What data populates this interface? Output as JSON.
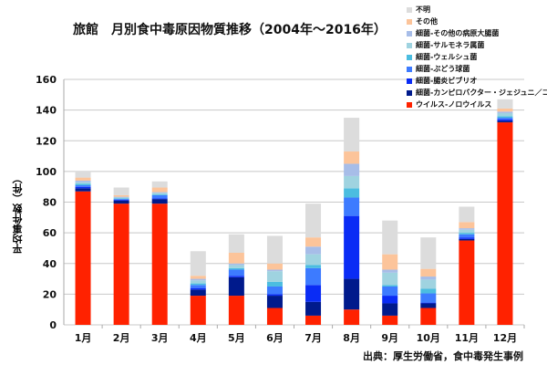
{
  "chart_data": {
    "type": "bar",
    "stacked": true,
    "title": "旅館　月別食中毒原因物質推移（2004年〜2016年）",
    "ylabel": "平均事件数（件）",
    "xlabel": "",
    "ylim": [
      0,
      160
    ],
    "yticks": [
      0,
      20,
      40,
      60,
      80,
      100,
      120,
      140,
      160
    ],
    "grid": true,
    "legend_position": "top-right",
    "categories": [
      "1月",
      "2月",
      "3月",
      "4月",
      "5月",
      "6月",
      "7月",
      "8月",
      "9月",
      "10月",
      "11月",
      "12月"
    ],
    "series": [
      {
        "name": "ウイルス-ノロウイルス",
        "color": "#ff2200",
        "values": [
          87,
          79,
          79,
          19,
          19,
          11,
          6,
          10,
          6,
          11,
          55,
          132
        ]
      },
      {
        "name": "細菌-カンピロバクター・ジェジュニ／コリ",
        "color": "#001a8c",
        "values": [
          2,
          2,
          3,
          4,
          12,
          8,
          9,
          20,
          8,
          3,
          1,
          1
        ]
      },
      {
        "name": "細菌-腸炎ビブリオ",
        "color": "#0a2cf5",
        "values": [
          1,
          0.5,
          0.5,
          1,
          1,
          1,
          11,
          41,
          5,
          0.5,
          1,
          1
        ]
      },
      {
        "name": "細菌-ぶどう球菌",
        "color": "#3d7bff",
        "values": [
          1,
          0.5,
          2,
          2,
          4,
          5,
          11,
          12,
          6,
          6,
          2,
          1
        ]
      },
      {
        "name": "細菌-ウェルシュ菌",
        "color": "#4bbde0",
        "values": [
          1,
          0.5,
          0.5,
          1,
          1,
          3,
          2,
          6,
          1,
          3,
          1,
          1
        ]
      },
      {
        "name": "細菌-サルモネラ属菌",
        "color": "#9fd3e0",
        "values": [
          1,
          0.5,
          1,
          2,
          2,
          7,
          7,
          8,
          8,
          6,
          2,
          2
        ]
      },
      {
        "name": "細菌-その他の病原大腸菌",
        "color": "#a7bde8",
        "values": [
          1,
          0.5,
          0.5,
          1,
          1,
          1,
          5,
          8,
          2,
          2,
          1,
          1
        ]
      },
      {
        "name": "その他",
        "color": "#fcc49a",
        "values": [
          2,
          1,
          3,
          2,
          7,
          4,
          6,
          8,
          10,
          5,
          4,
          2
        ]
      },
      {
        "name": "不明",
        "color": "#dcdcdc",
        "values": [
          4,
          5,
          4,
          16,
          12,
          18,
          22,
          22,
          22,
          20.5,
          10,
          6
        ]
      }
    ]
  },
  "source": "出典：厚生労働省，食中毒発生事例"
}
